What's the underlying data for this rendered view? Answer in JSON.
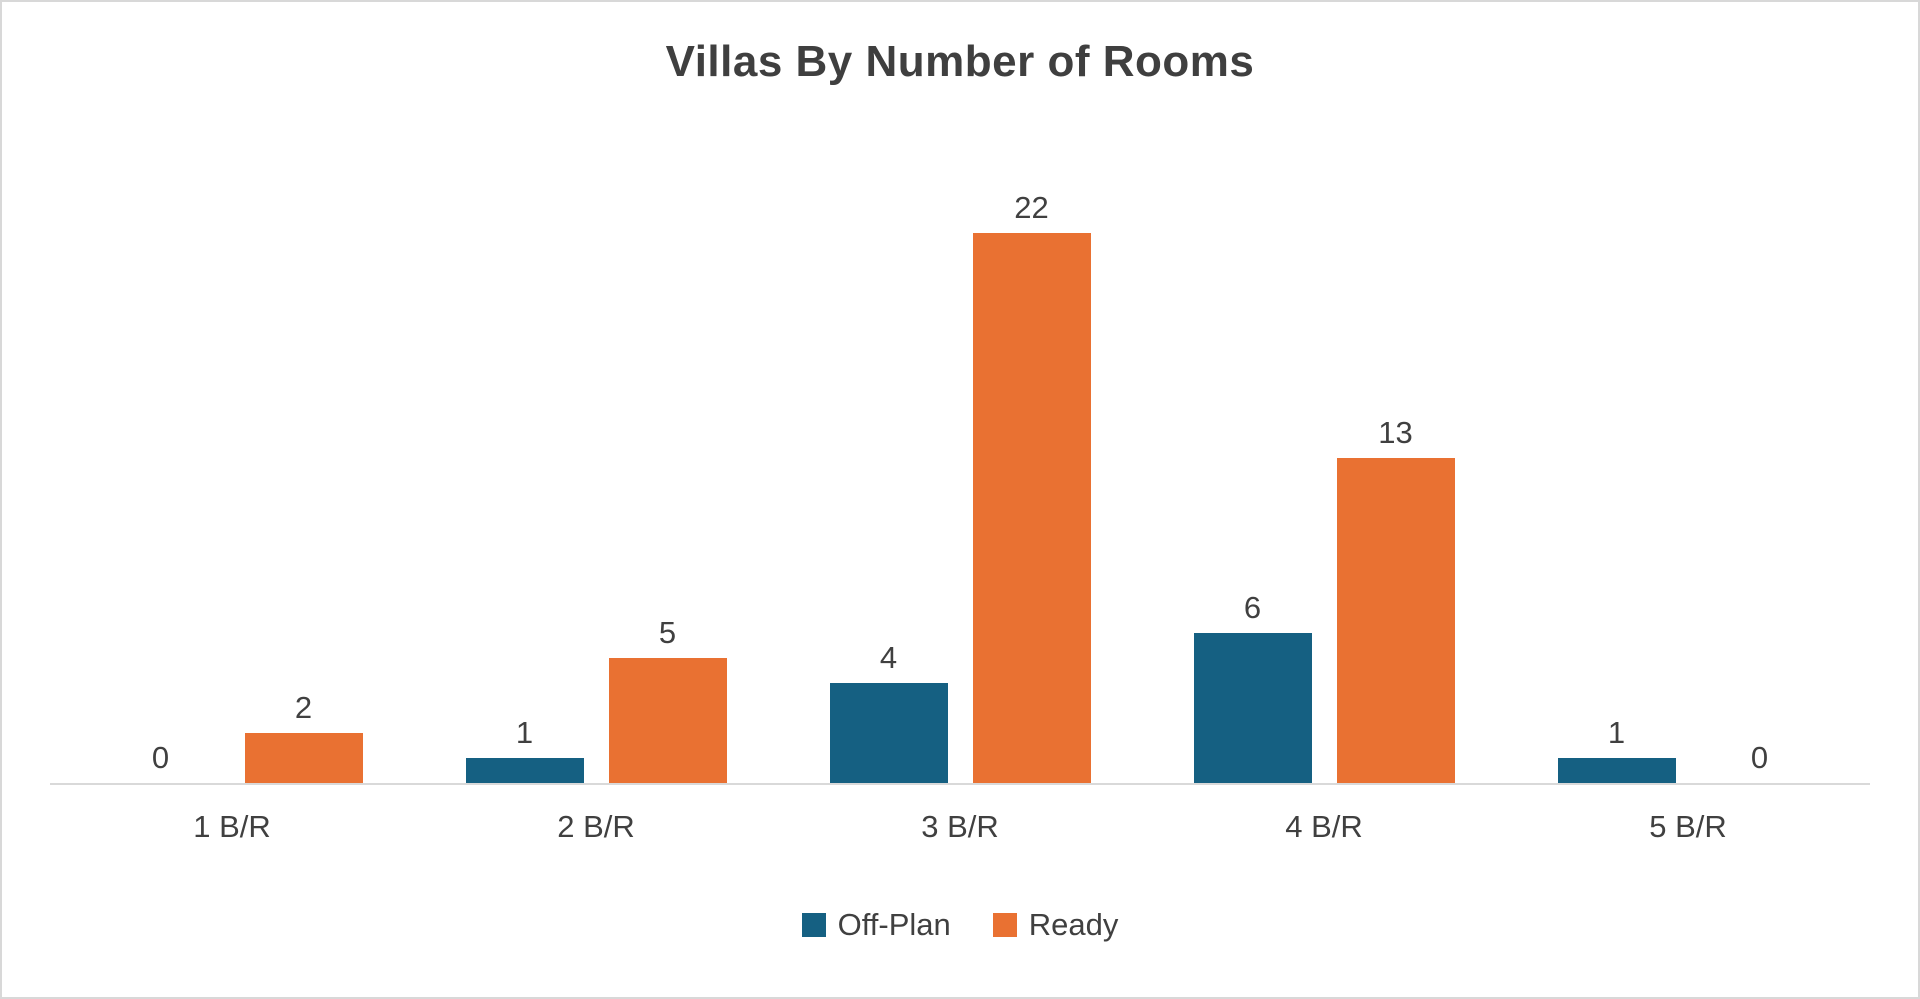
{
  "chart_data": {
    "type": "bar",
    "title": "Villas By Number of Rooms",
    "categories": [
      "1 B/R",
      "2 B/R",
      "3 B/R",
      "4 B/R",
      "5 B/R"
    ],
    "series": [
      {
        "name": "Off-Plan",
        "color": "#156082",
        "values": [
          0,
          1,
          4,
          6,
          1
        ]
      },
      {
        "name": "Ready",
        "color": "#E97132",
        "values": [
          2,
          5,
          22,
          13,
          0
        ]
      }
    ],
    "ylim": [
      0,
      22
    ],
    "grid": false,
    "data_labels": true,
    "legend_position": "bottom",
    "xlabel": "",
    "ylabel": ""
  },
  "style": {
    "background": "#ffffff",
    "border_color": "#d8d8d8",
    "axis_line_color": "#d9d9d9",
    "text_color": "#404040"
  }
}
